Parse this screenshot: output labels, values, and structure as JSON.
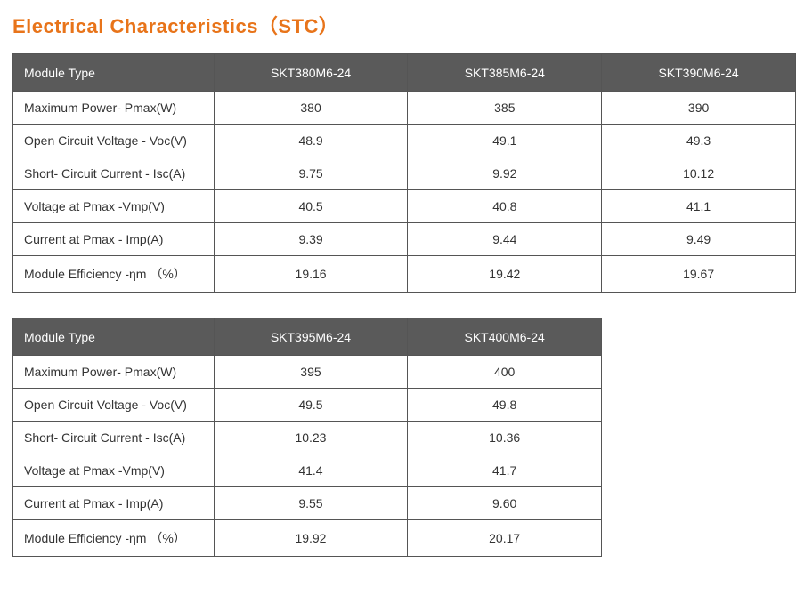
{
  "title": "Electrical Characteristics（STC）",
  "colors": {
    "title_color": "#e8741a",
    "header_bg": "#5a5a5a",
    "header_text": "#ffffff",
    "border_color": "#555555",
    "body_text": "#333333",
    "background": "#ffffff"
  },
  "table1": {
    "header_label": "Module Type",
    "columns": [
      "SKT380M6-24",
      "SKT385M6-24",
      "SKT390M6-24"
    ],
    "rows": [
      {
        "label": "Maximum Power- Pmax(W)",
        "values": [
          "380",
          "385",
          "390"
        ]
      },
      {
        "label": "Open Circuit Voltage - Voc(V)",
        "values": [
          "48.9",
          "49.1",
          "49.3"
        ]
      },
      {
        "label": "Short- Circuit Current - Isc(A)",
        "values": [
          "9.75",
          "9.92",
          "10.12"
        ]
      },
      {
        "label": "Voltage at Pmax -Vmp(V)",
        "values": [
          "40.5",
          "40.8",
          "41.1"
        ]
      },
      {
        "label": "Current at Pmax  - Imp(A)",
        "values": [
          "9.39",
          "9.44",
          "9.49"
        ]
      },
      {
        "label": "Module Efficiency -ηm （%）",
        "values": [
          "19.16",
          "19.42",
          "19.67"
        ]
      }
    ]
  },
  "table2": {
    "header_label": "Module Type",
    "columns": [
      "SKT395M6-24",
      "SKT400M6-24"
    ],
    "rows": [
      {
        "label": "Maximum Power- Pmax(W)",
        "values": [
          "395",
          "400"
        ]
      },
      {
        "label": "Open Circuit Voltage - Voc(V)",
        "values": [
          "49.5",
          "49.8"
        ]
      },
      {
        "label": "Short- Circuit Current - Isc(A)",
        "values": [
          "10.23",
          "10.36"
        ]
      },
      {
        "label": "Voltage at Pmax -Vmp(V)",
        "values": [
          "41.4",
          "41.7"
        ]
      },
      {
        "label": "Current at Pmax  - Imp(A)",
        "values": [
          "9.55",
          "9.60"
        ]
      },
      {
        "label": "Module Efficiency -ηm （%）",
        "values": [
          "19.92",
          "20.17"
        ]
      }
    ]
  }
}
